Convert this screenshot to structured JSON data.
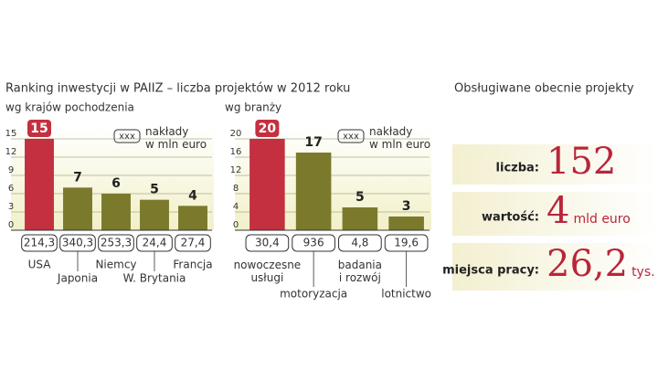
{
  "title": "Ranking inwestycji w PAIIZ – liczba projektów w 2012 roku",
  "chart_data": [
    {
      "type": "bar",
      "subtitle": "wg krajów pochodzenia",
      "legend_box": "xxx",
      "legend_text": "nakłady\nw mln euro",
      "categories": [
        "USA",
        "Japonia",
        "Niemcy",
        "W. Brytania",
        "Francja"
      ],
      "values": [
        15,
        7,
        6,
        5,
        4
      ],
      "expenditure": [
        "214,3",
        "340,3",
        "253,3",
        "24,4",
        "27,4"
      ],
      "colors": [
        "#c4303f",
        "#7b7a2c",
        "#7b7a2c",
        "#7b7a2c",
        "#7b7a2c"
      ],
      "ylim": [
        0,
        15
      ],
      "yticks": [
        0,
        3,
        6,
        9,
        12,
        15
      ],
      "grid": true
    },
    {
      "type": "bar",
      "subtitle": "wg branży",
      "legend_box": "xxx",
      "legend_text": "nakłady\nw mln euro",
      "categories": [
        "nowoczesne\nusługi",
        "motoryzacja",
        "badania\ni rozwój",
        "lotnictwo"
      ],
      "values": [
        20,
        17,
        5,
        3
      ],
      "expenditure": [
        "30,4",
        "936",
        "4,8",
        "19,6"
      ],
      "colors": [
        "#c4303f",
        "#7b7a2c",
        "#7b7a2c",
        "#7b7a2c"
      ],
      "ylim": [
        0,
        20
      ],
      "yticks": [
        0,
        4,
        8,
        12,
        16,
        20
      ],
      "grid": true
    }
  ],
  "panel": {
    "title": "Obsługiwane obecnie projekty",
    "rows": [
      {
        "label": "liczba:",
        "value": "152"
      },
      {
        "label": "wartość:",
        "value": "4",
        "unit": "mld euro"
      },
      {
        "label": "miejsca pracy:",
        "value": "26,2",
        "unit": "tys."
      }
    ]
  }
}
